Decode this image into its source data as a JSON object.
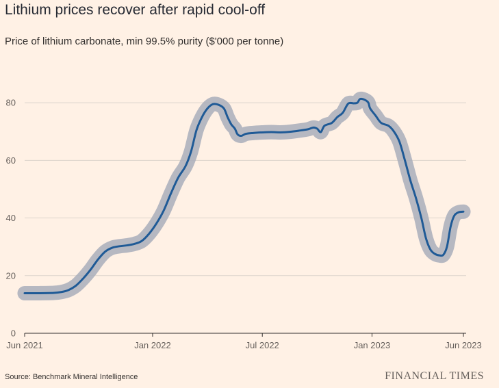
{
  "chart_data": {
    "type": "line",
    "title": "Lithium prices recover after rapid cool-off",
    "subtitle": "Price of lithium carbonate, min 99.5% purity ($'000 per tonne)",
    "xlabel": "",
    "ylabel": "",
    "ylim": [
      0,
      90
    ],
    "grid": true,
    "y_ticks": [
      {
        "value": 0,
        "label": "0"
      },
      {
        "value": 20,
        "label": "20"
      },
      {
        "value": 40,
        "label": "40"
      },
      {
        "value": 60,
        "label": "60"
      },
      {
        "value": 80,
        "label": "80"
      }
    ],
    "x_ticks": [
      {
        "value": 0,
        "label": "Jun 2021"
      },
      {
        "value": 7,
        "label": "Jan 2022"
      },
      {
        "value": 13,
        "label": "Jul 2022"
      },
      {
        "value": 19,
        "label": "Jan 2023"
      },
      {
        "value": 24,
        "label": "Jun 2023"
      }
    ],
    "x_unit": "months since Jun 2021",
    "xlim": [
      0,
      24
    ],
    "series": [
      {
        "name": "Price of lithium carbonate",
        "color": "#1f5a96",
        "band_color": "#a9aebb",
        "band_width": 2.5,
        "points": [
          [
            0.0,
            13.9
          ],
          [
            0.8,
            13.9
          ],
          [
            1.6,
            14.0
          ],
          [
            2.0,
            14.3
          ],
          [
            2.4,
            15.0
          ],
          [
            2.8,
            16.5
          ],
          [
            3.2,
            19.0
          ],
          [
            3.6,
            22.0
          ],
          [
            4.0,
            25.5
          ],
          [
            4.4,
            28.3
          ],
          [
            4.8,
            29.7
          ],
          [
            5.2,
            30.2
          ],
          [
            5.6,
            30.5
          ],
          [
            6.0,
            31.0
          ],
          [
            6.4,
            32.0
          ],
          [
            6.8,
            34.5
          ],
          [
            7.2,
            38.0
          ],
          [
            7.6,
            42.5
          ],
          [
            8.0,
            48.5
          ],
          [
            8.4,
            54.0
          ],
          [
            8.8,
            58.0
          ],
          [
            9.1,
            63.0
          ],
          [
            9.4,
            70.5
          ],
          [
            9.7,
            75.0
          ],
          [
            10.0,
            78.0
          ],
          [
            10.3,
            79.5
          ],
          [
            10.6,
            79.3
          ],
          [
            10.9,
            78.0
          ],
          [
            11.1,
            75.0
          ],
          [
            11.3,
            72.5
          ],
          [
            11.5,
            71.0
          ],
          [
            11.65,
            69.0
          ],
          [
            11.85,
            68.5
          ],
          [
            12.1,
            69.2
          ],
          [
            12.5,
            69.5
          ],
          [
            13.0,
            69.7
          ],
          [
            13.5,
            69.8
          ],
          [
            14.0,
            69.7
          ],
          [
            14.5,
            69.9
          ],
          [
            15.0,
            70.3
          ],
          [
            15.5,
            70.8
          ],
          [
            15.8,
            71.4
          ],
          [
            16.0,
            71.0
          ],
          [
            16.2,
            69.8
          ],
          [
            16.4,
            72.0
          ],
          [
            16.8,
            73.0
          ],
          [
            17.1,
            75.0
          ],
          [
            17.4,
            76.5
          ],
          [
            17.7,
            79.7
          ],
          [
            18.0,
            79.8
          ],
          [
            18.2,
            80.0
          ],
          [
            18.35,
            81.3
          ],
          [
            18.6,
            81.0
          ],
          [
            18.8,
            80.0
          ],
          [
            18.9,
            78.0
          ],
          [
            19.2,
            75.5
          ],
          [
            19.5,
            73.0
          ],
          [
            19.9,
            72.0
          ],
          [
            20.2,
            70.0
          ],
          [
            20.5,
            66.5
          ],
          [
            20.8,
            60.0
          ],
          [
            21.1,
            53.0
          ],
          [
            21.4,
            47.0
          ],
          [
            21.7,
            40.0
          ],
          [
            21.95,
            33.0
          ],
          [
            22.2,
            29.0
          ],
          [
            22.45,
            27.5
          ],
          [
            22.7,
            27.0
          ],
          [
            22.9,
            27.2
          ],
          [
            23.1,
            30.0
          ],
          [
            23.3,
            37.0
          ],
          [
            23.5,
            40.8
          ],
          [
            23.75,
            42.0
          ],
          [
            24.0,
            42.2
          ]
        ]
      }
    ]
  },
  "source": "Source: Benchmark Mineral Intelligence",
  "brand": "FINANCIAL TIMES"
}
